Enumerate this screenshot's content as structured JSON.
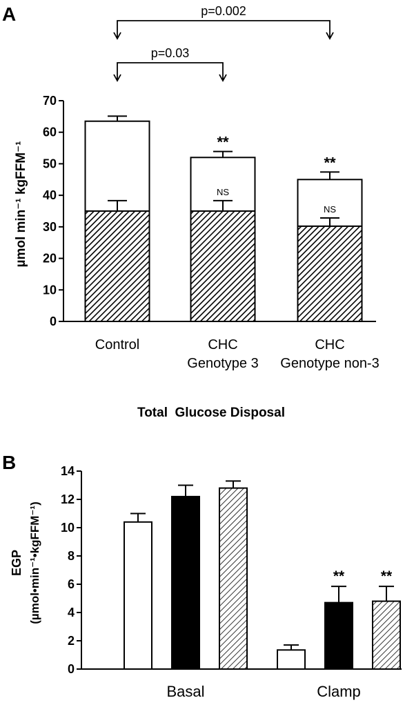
{
  "panels": {
    "a": {
      "letter": "A"
    },
    "b": {
      "letter": "B"
    }
  },
  "colors": {
    "axis": "#000000",
    "open_bar": "#ffffff",
    "filled_bar": "#000000",
    "hatch": "#000000"
  },
  "chart_data": [
    {
      "type": "bar",
      "stacked": true,
      "categories": [
        "Control",
        "CHC Genotype 3",
        "CHC Genotype non-3"
      ],
      "category_lines": [
        [
          "Control"
        ],
        [
          "CHC",
          "Genotype 3"
        ],
        [
          "CHC",
          "Genotype non-3"
        ]
      ],
      "series": [
        {
          "pattern": "hatched",
          "values": [
            35,
            35,
            30.2
          ],
          "errors": [
            3.3,
            3.3,
            2.6
          ]
        },
        {
          "pattern": "open",
          "totals": [
            63.5,
            52,
            45
          ],
          "errors": [
            1.6,
            1.9,
            2.4
          ]
        }
      ],
      "ylabel": "µmol min⁻¹ kgFFM⁻¹",
      "ylim": [
        0,
        70
      ],
      "yticks": [
        0,
        10,
        20,
        30,
        40,
        50,
        60,
        70
      ],
      "title": "Total  Glucose Disposal",
      "total_annotations": [
        "",
        "**",
        "**"
      ],
      "inner_annotations": [
        "",
        "NS",
        "NS"
      ],
      "comparisons": [
        {
          "label": "p=0.002",
          "from": 0,
          "to": 2
        },
        {
          "label": "p=0.03",
          "from": 0,
          "to": 1
        }
      ],
      "grid": false
    },
    {
      "type": "bar",
      "categories": [
        "Basal",
        "Clamp"
      ],
      "series": [
        {
          "fill": "open",
          "values": [
            10.4,
            1.35
          ],
          "errors": [
            0.6,
            0.35
          ]
        },
        {
          "fill": "solid",
          "values": [
            12.2,
            4.7
          ],
          "errors": [
            0.8,
            1.15
          ]
        },
        {
          "fill": "hatched",
          "values": [
            12.8,
            4.8
          ],
          "errors": [
            0.5,
            1.05
          ]
        }
      ],
      "annotations": [
        [
          "",
          "",
          ""
        ],
        [
          "",
          "**",
          "**"
        ]
      ],
      "ylabel_main": "EGP",
      "ylabel_units": "(µmol•min⁻¹•kgFFM⁻¹)",
      "ylim": [
        0,
        14
      ],
      "yticks": [
        0,
        2,
        4,
        6,
        8,
        10,
        12,
        14
      ],
      "grid": false
    }
  ]
}
